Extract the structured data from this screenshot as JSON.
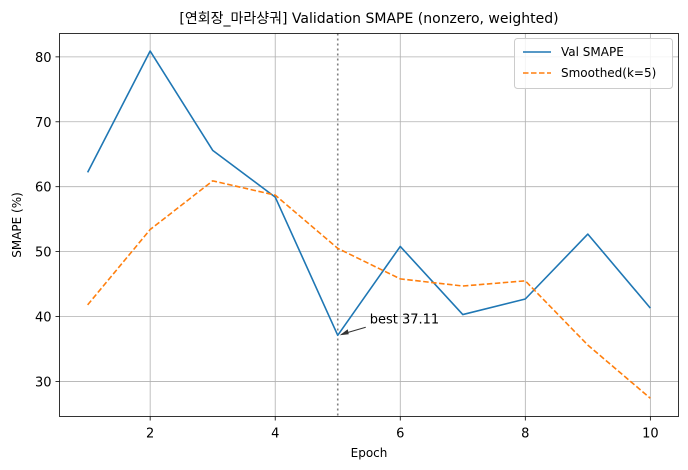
{
  "chart_data": {
    "type": "line",
    "title": "[연회장_마라샹궈] Validation SMAPE (nonzero, weighted)",
    "xlabel": "Epoch",
    "ylabel": "SMAPE (%)",
    "x": [
      1,
      2,
      3,
      4,
      5,
      6,
      7,
      8,
      9,
      10
    ],
    "xlim": [
      0.55,
      10.45
    ],
    "ylim": [
      24.6,
      83.6
    ],
    "xticks": [
      2,
      4,
      6,
      8,
      10
    ],
    "yticks": [
      30,
      40,
      50,
      60,
      70,
      80
    ],
    "grid": true,
    "legend_position": "top-right",
    "series": [
      {
        "name": "Val SMAPE",
        "style": "solid",
        "color": "#1f77b4",
        "values": [
          62.2,
          80.9,
          65.6,
          58.4,
          37.11,
          50.8,
          40.3,
          42.7,
          52.7,
          41.3
        ]
      },
      {
        "name": "Smoothed(k=5)",
        "style": "dashed",
        "color": "#ff7f0e",
        "values": [
          41.8,
          53.4,
          60.9,
          58.7,
          50.5,
          45.8,
          44.7,
          45.5,
          35.6,
          27.4
        ]
      }
    ],
    "best_marker": {
      "x": 5,
      "y": 37.11,
      "label": "best 37.11",
      "line_color": "#808080"
    }
  }
}
